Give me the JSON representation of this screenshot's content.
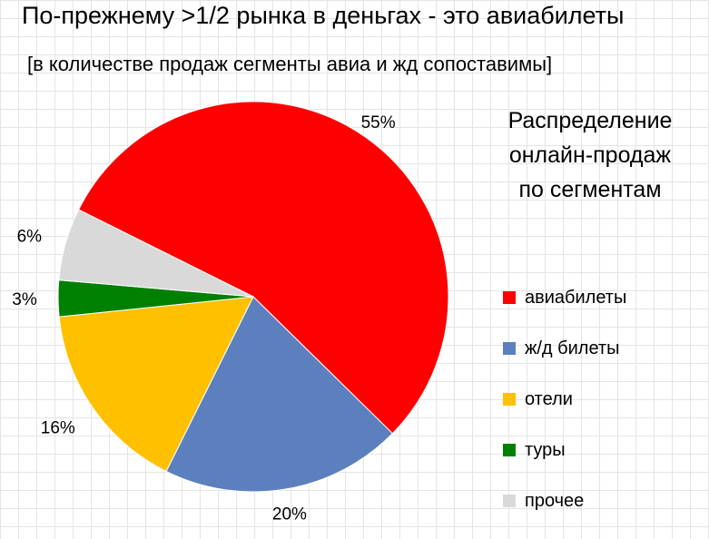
{
  "title": "По-прежнему >1/2 рынка в деньгах - это авиабилеты",
  "subtitle": "[в количестве продаж сегменты авиа и жд сопоставимы]",
  "chart_data": {
    "type": "pie",
    "title_lines": [
      "Распределение",
      "онлайн-продаж",
      "по сегментам"
    ],
    "slices": [
      {
        "label": "авиабилеты",
        "value": 55,
        "display": "55%",
        "color": "#ff0000"
      },
      {
        "label": "ж/д билеты",
        "value": 20,
        "display": "20%",
        "color": "#5b80bd"
      },
      {
        "label": "отели",
        "value": 16,
        "display": "16%",
        "color": "#ffc000"
      },
      {
        "label": "туры",
        "value": 3,
        "display": "3%",
        "color": "#008000"
      },
      {
        "label": "прочее",
        "value": 6,
        "display": "6%",
        "color": "#d9d9d9"
      }
    ],
    "legend_position": "right"
  }
}
